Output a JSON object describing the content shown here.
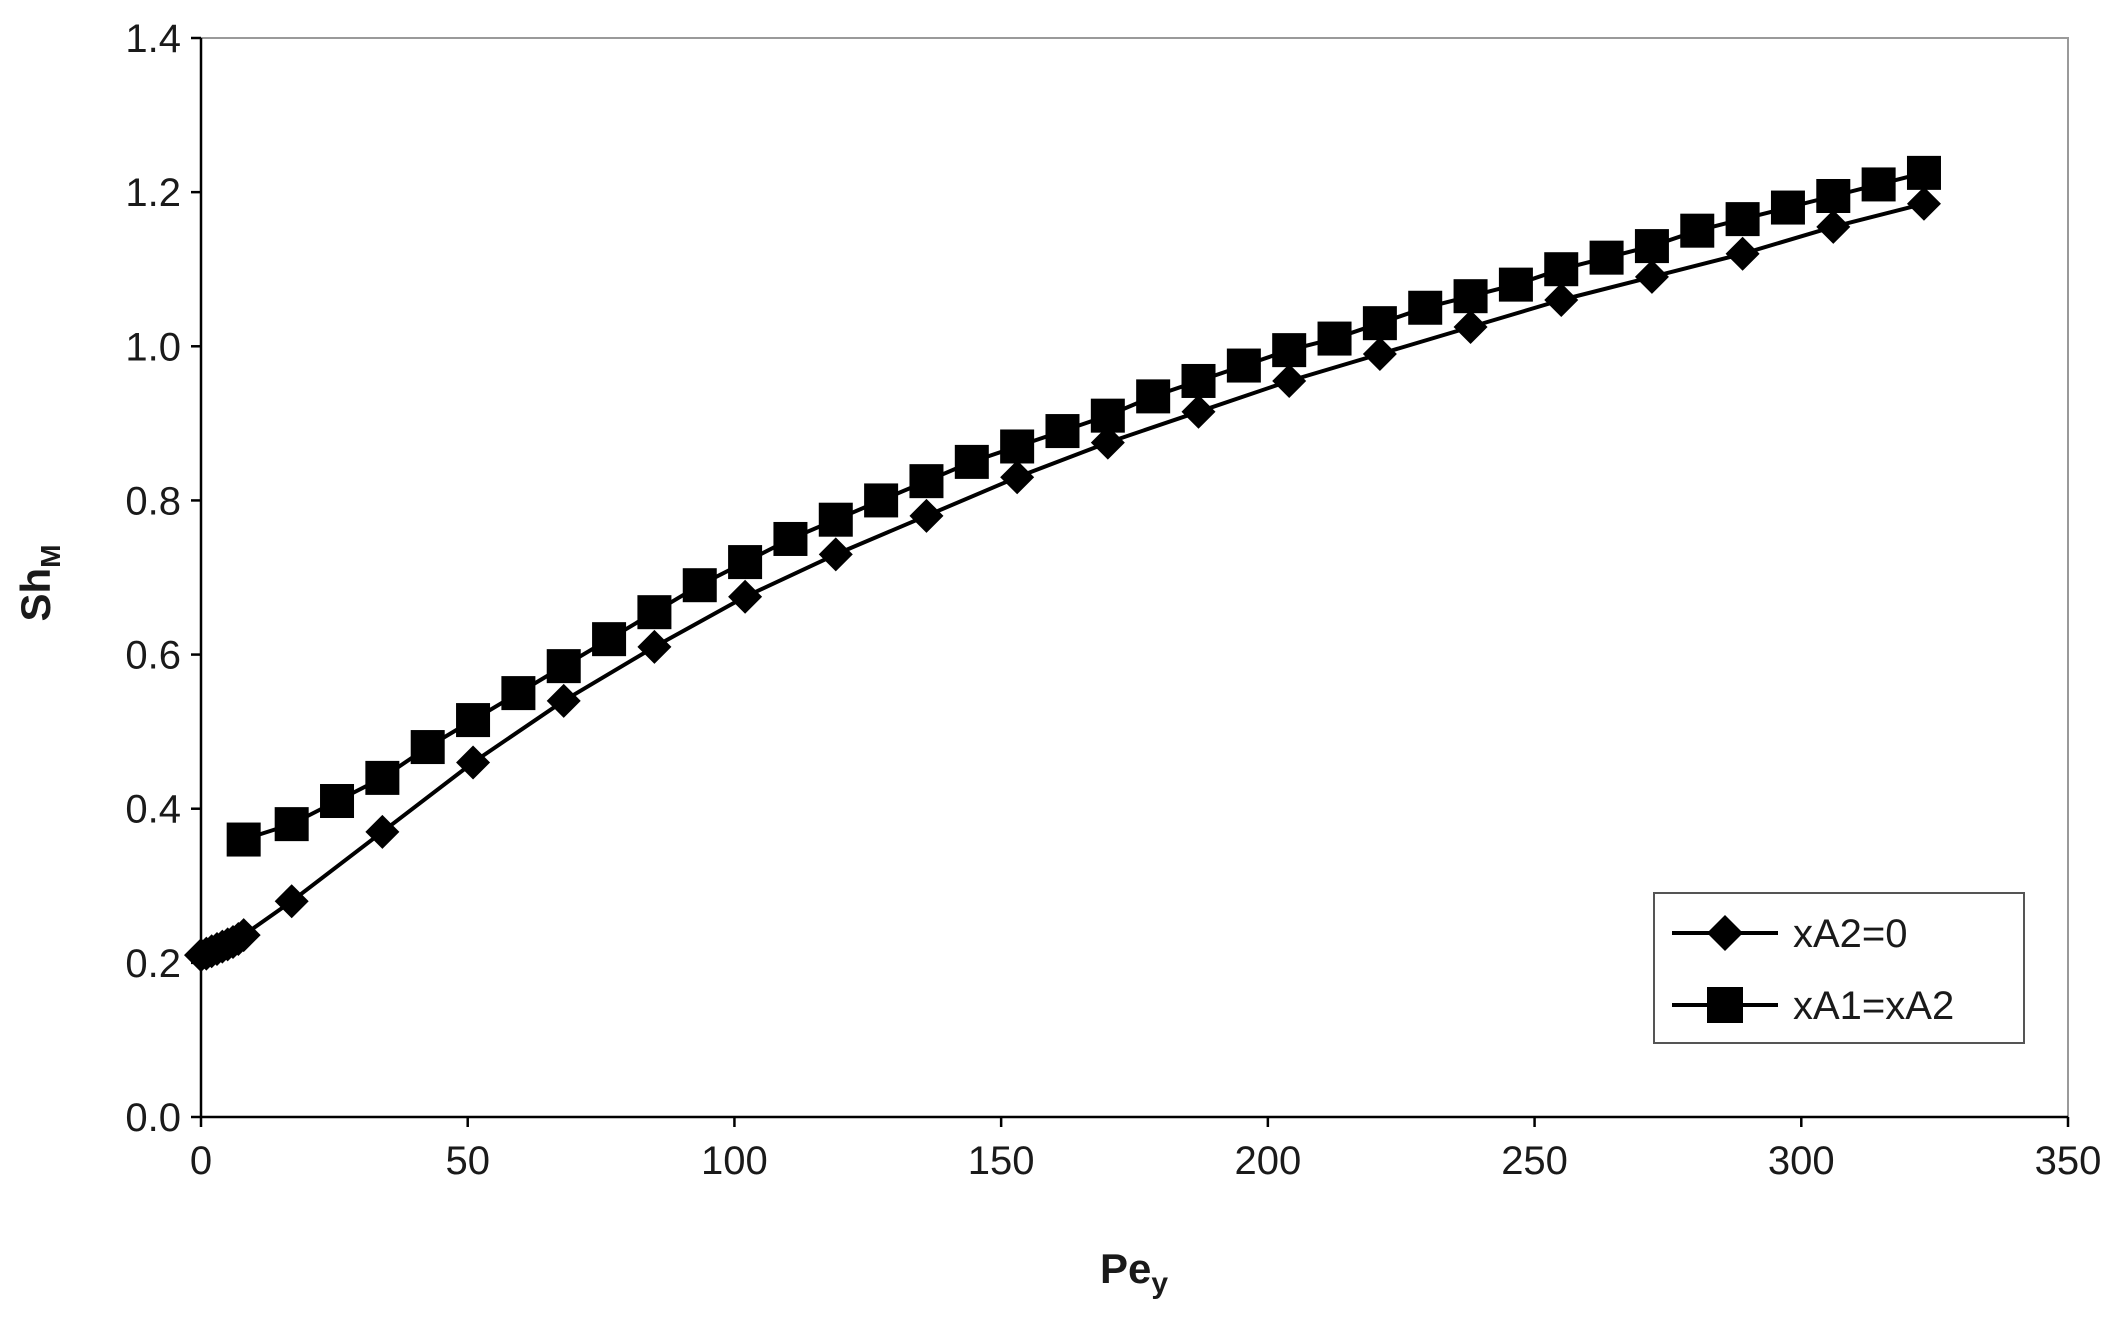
{
  "chart_data": {
    "type": "line",
    "title": "",
    "xlabel": {
      "main": "Pe",
      "sub": "y"
    },
    "ylabel": {
      "main": "Sh",
      "sub": "M"
    },
    "xlim": [
      0,
      350
    ],
    "ylim": [
      0,
      1.4
    ],
    "x_ticks": [
      "0",
      "50",
      "100",
      "150",
      "200",
      "250",
      "300",
      "350"
    ],
    "y_ticks": [
      "0.0",
      "0.2",
      "0.4",
      "0.6",
      "0.8",
      "1.0",
      "1.2",
      "1.4"
    ],
    "grid": false,
    "legend_position": "bottom-right",
    "series": [
      {
        "name": "xA2=0",
        "marker": "diamond",
        "color": "#000000",
        "x": [
          0,
          1,
          2,
          3,
          4,
          5,
          6,
          7,
          8,
          17,
          34,
          51,
          68,
          85,
          102,
          119,
          136,
          153,
          170,
          187,
          204,
          221,
          238,
          255,
          272,
          289,
          306,
          323
        ],
        "y": [
          0.21,
          0.212,
          0.215,
          0.218,
          0.221,
          0.224,
          0.227,
          0.231,
          0.236,
          0.28,
          0.37,
          0.46,
          0.54,
          0.61,
          0.675,
          0.73,
          0.78,
          0.83,
          0.875,
          0.915,
          0.955,
          0.99,
          1.025,
          1.06,
          1.09,
          1.12,
          1.155,
          1.185
        ]
      },
      {
        "name": "xA1=xA2",
        "marker": "square",
        "color": "#000000",
        "x": [
          8,
          17,
          25.5,
          34,
          42.5,
          51,
          59.5,
          68,
          76.5,
          85,
          93.5,
          102,
          110.5,
          119,
          127.5,
          136,
          144.5,
          153,
          161.5,
          170,
          178.5,
          187,
          195.5,
          204,
          212.5,
          221,
          229.5,
          238,
          246.5,
          255,
          263.5,
          272,
          280.5,
          289,
          297.5,
          306,
          314.5,
          323
        ],
        "y": [
          0.36,
          0.38,
          0.41,
          0.44,
          0.48,
          0.515,
          0.55,
          0.585,
          0.62,
          0.655,
          0.69,
          0.72,
          0.75,
          0.775,
          0.8,
          0.825,
          0.85,
          0.87,
          0.89,
          0.91,
          0.935,
          0.955,
          0.975,
          0.995,
          1.01,
          1.03,
          1.05,
          1.065,
          1.08,
          1.1,
          1.115,
          1.13,
          1.15,
          1.165,
          1.18,
          1.195,
          1.21,
          1.225
        ]
      }
    ]
  }
}
